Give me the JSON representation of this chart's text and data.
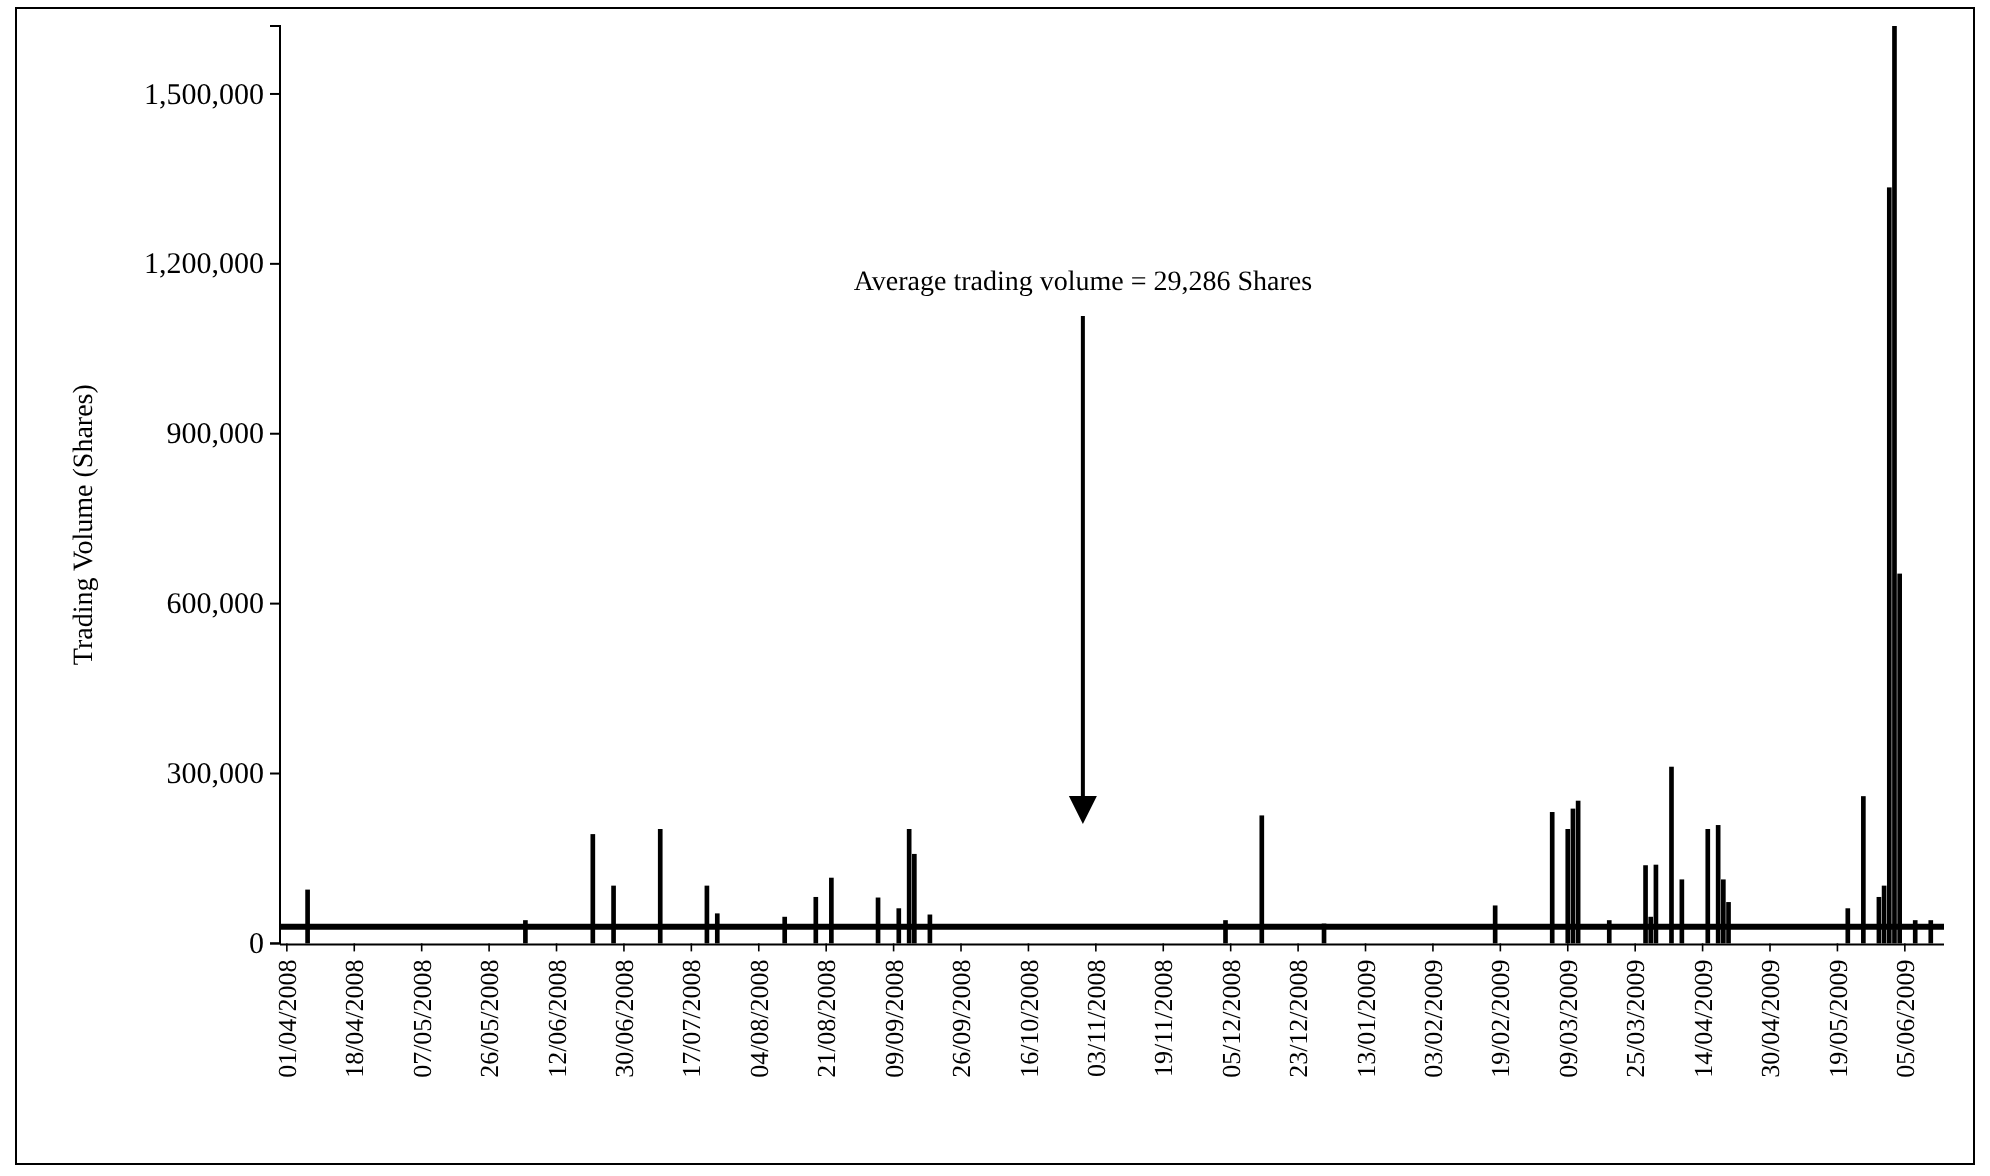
{
  "chart_data": {
    "type": "bar",
    "ylabel": "Trading Volume (Shares)",
    "categories": [
      "01/04/2008",
      null,
      null,
      null,
      null,
      null,
      null,
      null,
      null,
      null,
      null,
      null,
      null,
      "18/04/2008",
      null,
      null,
      null,
      null,
      null,
      null,
      null,
      null,
      null,
      null,
      null,
      null,
      "07/05/2008",
      null,
      null,
      null,
      null,
      null,
      null,
      null,
      null,
      null,
      null,
      null,
      null,
      "26/05/2008",
      null,
      null,
      null,
      null,
      null,
      null,
      null,
      null,
      null,
      null,
      null,
      null,
      "12/06/2008",
      null,
      null,
      null,
      null,
      null,
      null,
      null,
      null,
      null,
      null,
      null,
      null,
      "30/06/2008",
      null,
      null,
      null,
      null,
      null,
      null,
      null,
      null,
      null,
      null,
      null,
      null,
      "17/07/2008",
      null,
      null,
      null,
      null,
      null,
      null,
      null,
      null,
      null,
      null,
      null,
      null,
      "04/08/2008",
      null,
      null,
      null,
      null,
      null,
      null,
      null,
      null,
      null,
      null,
      null,
      null,
      "21/08/2008",
      null,
      null,
      null,
      null,
      null,
      null,
      null,
      null,
      null,
      null,
      null,
      null,
      "09/09/2008",
      null,
      null,
      null,
      null,
      null,
      null,
      null,
      null,
      null,
      null,
      null,
      null,
      "26/09/2008",
      null,
      null,
      null,
      null,
      null,
      null,
      null,
      null,
      null,
      null,
      null,
      null,
      "16/10/2008",
      null,
      null,
      null,
      null,
      null,
      null,
      null,
      null,
      null,
      null,
      null,
      null,
      "03/11/2008",
      null,
      null,
      null,
      null,
      null,
      null,
      null,
      null,
      null,
      null,
      null,
      null,
      "19/11/2008",
      null,
      null,
      null,
      null,
      null,
      null,
      null,
      null,
      null,
      null,
      null,
      null,
      "05/12/2008",
      null,
      null,
      null,
      null,
      null,
      null,
      null,
      null,
      null,
      null,
      null,
      null,
      "23/12/2008",
      null,
      null,
      null,
      null,
      null,
      null,
      null,
      null,
      null,
      null,
      null,
      null,
      "13/01/2009",
      null,
      null,
      null,
      null,
      null,
      null,
      null,
      null,
      null,
      null,
      null,
      null,
      "03/02/2009",
      null,
      null,
      null,
      null,
      null,
      null,
      null,
      null,
      null,
      null,
      null,
      null,
      "19/02/2009",
      null,
      null,
      null,
      null,
      null,
      null,
      null,
      null,
      null,
      null,
      null,
      null,
      "09/03/2009",
      null,
      null,
      null,
      null,
      null,
      null,
      null,
      null,
      null,
      null,
      null,
      null,
      "25/03/2009",
      null,
      null,
      null,
      null,
      null,
      null,
      null,
      null,
      null,
      null,
      null,
      null,
      "14/04/2009",
      null,
      null,
      null,
      null,
      null,
      null,
      null,
      null,
      null,
      null,
      null,
      null,
      "30/04/2009",
      null,
      null,
      null,
      null,
      null,
      null,
      null,
      null,
      null,
      null,
      null,
      null,
      "19/05/2009",
      null,
      null,
      null,
      null,
      null,
      null,
      null,
      null,
      null,
      null,
      null,
      null,
      "05/06/2009",
      null,
      null,
      null,
      null,
      null,
      null,
      null
    ],
    "values": [
      0,
      0,
      0,
      0,
      95000,
      0,
      0,
      0,
      0,
      0,
      0,
      0,
      0,
      0,
      0,
      0,
      0,
      0,
      0,
      0,
      0,
      0,
      0,
      0,
      0,
      0,
      0,
      0,
      0,
      0,
      0,
      0,
      0,
      0,
      0,
      0,
      0,
      0,
      0,
      0,
      0,
      0,
      0,
      0,
      0,
      0,
      41000,
      0,
      0,
      0,
      0,
      0,
      0,
      0,
      0,
      0,
      0,
      0,
      0,
      193000,
      0,
      0,
      0,
      102000,
      0,
      0,
      0,
      0,
      0,
      0,
      0,
      0,
      202000,
      0,
      0,
      0,
      0,
      0,
      0,
      0,
      0,
      102000,
      0,
      53000,
      0,
      0,
      0,
      0,
      0,
      0,
      0,
      0,
      0,
      0,
      0,
      0,
      47000,
      0,
      0,
      0,
      0,
      0,
      82000,
      0,
      0,
      116000,
      0,
      0,
      0,
      0,
      0,
      0,
      0,
      0,
      81000,
      0,
      0,
      0,
      62000,
      0,
      202000,
      158000,
      0,
      0,
      51000,
      0,
      0,
      0,
      0,
      0,
      0,
      0,
      0,
      0,
      0,
      0,
      0,
      0,
      0,
      0,
      0,
      0,
      0,
      0,
      0,
      0,
      0,
      0,
      0,
      0,
      0,
      0,
      0,
      0,
      0,
      0,
      0,
      0,
      0,
      0,
      0,
      0,
      0,
      0,
      0,
      0,
      0,
      0,
      0,
      0,
      0,
      0,
      0,
      0,
      0,
      0,
      0,
      0,
      0,
      0,
      0,
      41000,
      0,
      0,
      0,
      0,
      0,
      0,
      226000,
      0,
      0,
      0,
      0,
      0,
      0,
      0,
      0,
      0,
      0,
      0,
      35000,
      0,
      0,
      0,
      0,
      0,
      0,
      0,
      0,
      0,
      0,
      0,
      0,
      0,
      0,
      0,
      0,
      0,
      0,
      0,
      0,
      0,
      0,
      0,
      0,
      0,
      0,
      0,
      0,
      0,
      0,
      0,
      0,
      67000,
      0,
      0,
      0,
      0,
      0,
      0,
      0,
      0,
      0,
      0,
      232000,
      0,
      0,
      202000,
      238000,
      252000,
      0,
      0,
      0,
      0,
      0,
      41000,
      0,
      0,
      0,
      0,
      0,
      0,
      138000,
      47000,
      139000,
      0,
      0,
      312000,
      0,
      113000,
      0,
      0,
      0,
      0,
      202000,
      0,
      209000,
      113000,
      73000,
      0,
      0,
      0,
      0,
      0,
      0,
      0,
      0,
      0,
      0,
      0,
      0,
      0,
      0,
      0,
      0,
      0,
      0,
      0,
      0,
      0,
      0,
      62000,
      0,
      0,
      260000,
      0,
      0,
      82000,
      102000,
      1335000,
      1620000,
      653000,
      0,
      0,
      41000,
      0,
      0,
      41000,
      0,
      0
    ],
    "color": "#000000",
    "ylim": [
      0,
      1620000
    ],
    "yticks": [
      {
        "value": 0,
        "label": "0"
      },
      {
        "value": 300000,
        "label": "300,000"
      },
      {
        "value": 600000,
        "label": "600,000"
      },
      {
        "value": 900000,
        "label": "900,000"
      },
      {
        "value": 1200000,
        "label": "1,200,000"
      },
      {
        "value": 1500000,
        "label": "1,500,000"
      }
    ],
    "ref_lines": [
      {
        "axis": "y",
        "value": 29286,
        "label": "Average trading volume = 29,286 Shares",
        "color": "#000000"
      }
    ],
    "grid": false
  }
}
